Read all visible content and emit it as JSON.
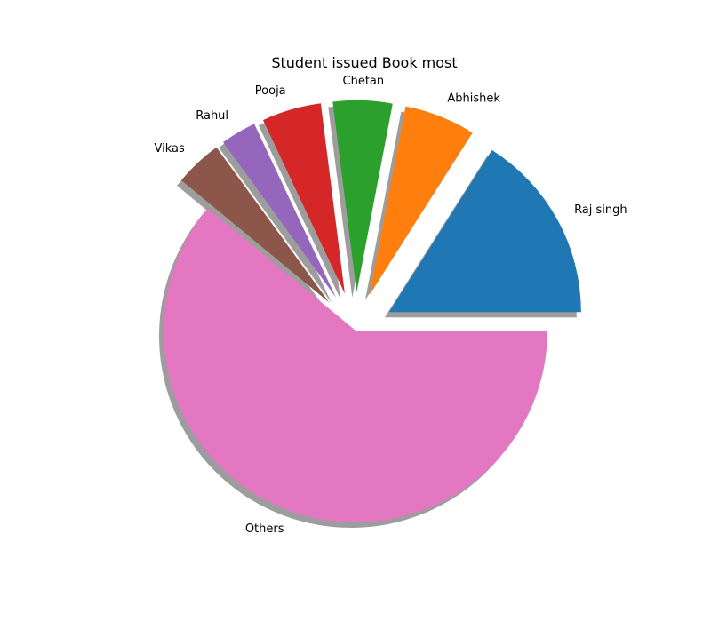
{
  "chart_data": {
    "type": "pie",
    "title": "Student issued Book most",
    "categories": [
      "Raj singh",
      "Abhishek",
      "Chetan",
      "Pooja",
      "Rahul",
      "Vikas",
      "Others"
    ],
    "values": [
      16,
      6,
      5,
      5,
      3,
      4,
      61
    ],
    "explode": [
      0.2,
      0.2,
      0.2,
      0.2,
      0.2,
      0.2,
      0
    ],
    "shadow": true,
    "start_angle_deg": 0,
    "direction": "counterclockwise",
    "colors": [
      "#1f77b4",
      "#ff7f0e",
      "#2ca02c",
      "#d62728",
      "#9467bd",
      "#8c564b",
      "#e377c2"
    ]
  }
}
